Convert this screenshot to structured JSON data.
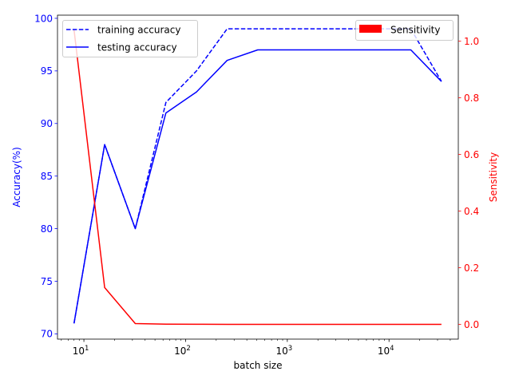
{
  "chart_data": {
    "type": "line",
    "x_scale": "log",
    "x": [
      8,
      16,
      32,
      64,
      128,
      256,
      512,
      1024,
      2048,
      4096,
      8192,
      16384,
      32768
    ],
    "xlabel": "batch size",
    "xlim": [
      5.5,
      48000
    ],
    "x_ticks": [
      {
        "value": 10,
        "base": "10",
        "exp": "1"
      },
      {
        "value": 100,
        "base": "10",
        "exp": "2"
      },
      {
        "value": 1000,
        "base": "10",
        "exp": "3"
      },
      {
        "value": 10000,
        "base": "10",
        "exp": "4"
      }
    ],
    "left_axis": {
      "label": "Accuracy(%)",
      "color": "#0000ff",
      "ylim": [
        69.5,
        100.3
      ],
      "ticks": [
        "70",
        "75",
        "80",
        "85",
        "90",
        "95",
        "100"
      ]
    },
    "right_axis": {
      "label": "Sensitivity",
      "color": "#ff0000",
      "ylim": [
        -0.052,
        1.092
      ],
      "ticks": [
        "0.0",
        "0.2",
        "0.4",
        "0.6",
        "0.8",
        "1.0"
      ]
    },
    "series": [
      {
        "name": "training accuracy",
        "axis": "left",
        "color": "#0000ff",
        "style": "dashed",
        "values": [
          71,
          88,
          80,
          92,
          95,
          99,
          99,
          99,
          99,
          99,
          99,
          99,
          94
        ]
      },
      {
        "name": "testing accuracy",
        "axis": "left",
        "color": "#0000ff",
        "style": "solid",
        "values": [
          71,
          88,
          80,
          91,
          93,
          96,
          97,
          97,
          97,
          97,
          97,
          97,
          94
        ]
      },
      {
        "name": "Sensitivity",
        "axis": "right",
        "color": "#ff0000",
        "style": "solid",
        "values": [
          1.04,
          0.13,
          0.003,
          0.001,
          0.0005,
          0.0003,
          0.0002,
          0.0002,
          0.0002,
          0.0002,
          0.0002,
          0.0002,
          0.0002
        ]
      }
    ],
    "legends": [
      {
        "placement": "upper-left",
        "entries": [
          "training accuracy",
          "testing accuracy"
        ]
      },
      {
        "placement": "upper-right",
        "entries": [
          "Sensitivity"
        ]
      }
    ]
  }
}
